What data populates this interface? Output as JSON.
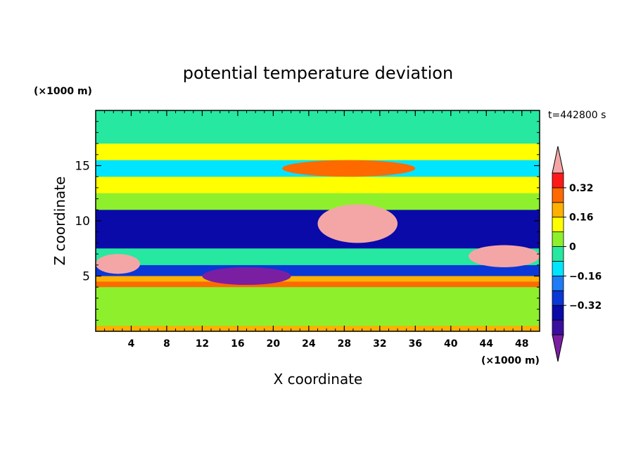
{
  "chart_data": {
    "type": "heatmap",
    "title": "potential temperature deviation",
    "time_label": "t=442800 s",
    "xlabel": "X coordinate",
    "ylabel": "Z coordinate",
    "x_unit": "(×1000 m)",
    "y_unit": "(×1000 m)",
    "xlim": [
      0,
      50
    ],
    "ylim": [
      0,
      20
    ],
    "x_ticks": [
      "4",
      "8",
      "12",
      "16",
      "20",
      "24",
      "28",
      "32",
      "36",
      "40",
      "44",
      "48"
    ],
    "x_tick_values": [
      4,
      8,
      12,
      16,
      20,
      24,
      28,
      32,
      36,
      40,
      44,
      48
    ],
    "y_ticks": [
      "5",
      "10",
      "15"
    ],
    "y_tick_values": [
      5,
      10,
      15
    ],
    "colorbar": {
      "levels": [
        -0.48,
        -0.4,
        -0.32,
        -0.24,
        -0.16,
        -0.08,
        0,
        0.08,
        0.16,
        0.24,
        0.32,
        0.4,
        0.48
      ],
      "colors": [
        "#7a1fa2",
        "#3b0f9e",
        "#0a0aa8",
        "#0b37d6",
        "#1e7cf5",
        "#00e5ff",
        "#26e8a0",
        "#8ef02c",
        "#ffff00",
        "#ffb000",
        "#ff6a00",
        "#ff1a1a",
        "#f4a6a6"
      ],
      "tick_labels": [
        "0.32",
        "0.16",
        "0",
        "−0.16",
        "−0.32"
      ],
      "tick_values": [
        0.32,
        0.16,
        0,
        -0.16,
        -0.32
      ],
      "extend": "both"
    },
    "layers": [
      {
        "z": [
          0.0,
          0.5
        ],
        "value": 0.2
      },
      {
        "z": [
          0.5,
          4.0
        ],
        "value": 0.05
      },
      {
        "z": [
          4.0,
          4.5
        ],
        "value": 0.3
      },
      {
        "z": [
          4.5,
          5.0
        ],
        "value": 0.2
      },
      {
        "z": [
          5.0,
          6.0
        ],
        "value": -0.3
      },
      {
        "z": [
          6.0,
          7.5
        ],
        "value": 0.0
      },
      {
        "z": [
          7.5,
          11.0
        ],
        "value": -0.38
      },
      {
        "z": [
          11.0,
          12.5
        ],
        "value": 0.05
      },
      {
        "z": [
          12.5,
          14.0
        ],
        "value": 0.15
      },
      {
        "z": [
          14.0,
          15.5
        ],
        "value": -0.12
      },
      {
        "z": [
          15.5,
          17.0
        ],
        "value": 0.1
      },
      {
        "z": [
          17.0,
          20.0
        ],
        "value": 0.0
      }
    ],
    "features": [
      {
        "x": [
          25,
          34
        ],
        "z": [
          8.0,
          11.5
        ],
        "value": 0.5
      },
      {
        "x": [
          0,
          5
        ],
        "z": [
          5.2,
          7.0
        ],
        "value": 0.5
      },
      {
        "x": [
          42,
          50
        ],
        "z": [
          5.8,
          7.8
        ],
        "value": 0.5
      },
      {
        "x": [
          12,
          22
        ],
        "z": [
          4.2,
          5.8
        ],
        "value": -0.48
      },
      {
        "x": [
          21,
          36
        ],
        "z": [
          14.0,
          15.5
        ],
        "value": 0.3
      }
    ]
  }
}
